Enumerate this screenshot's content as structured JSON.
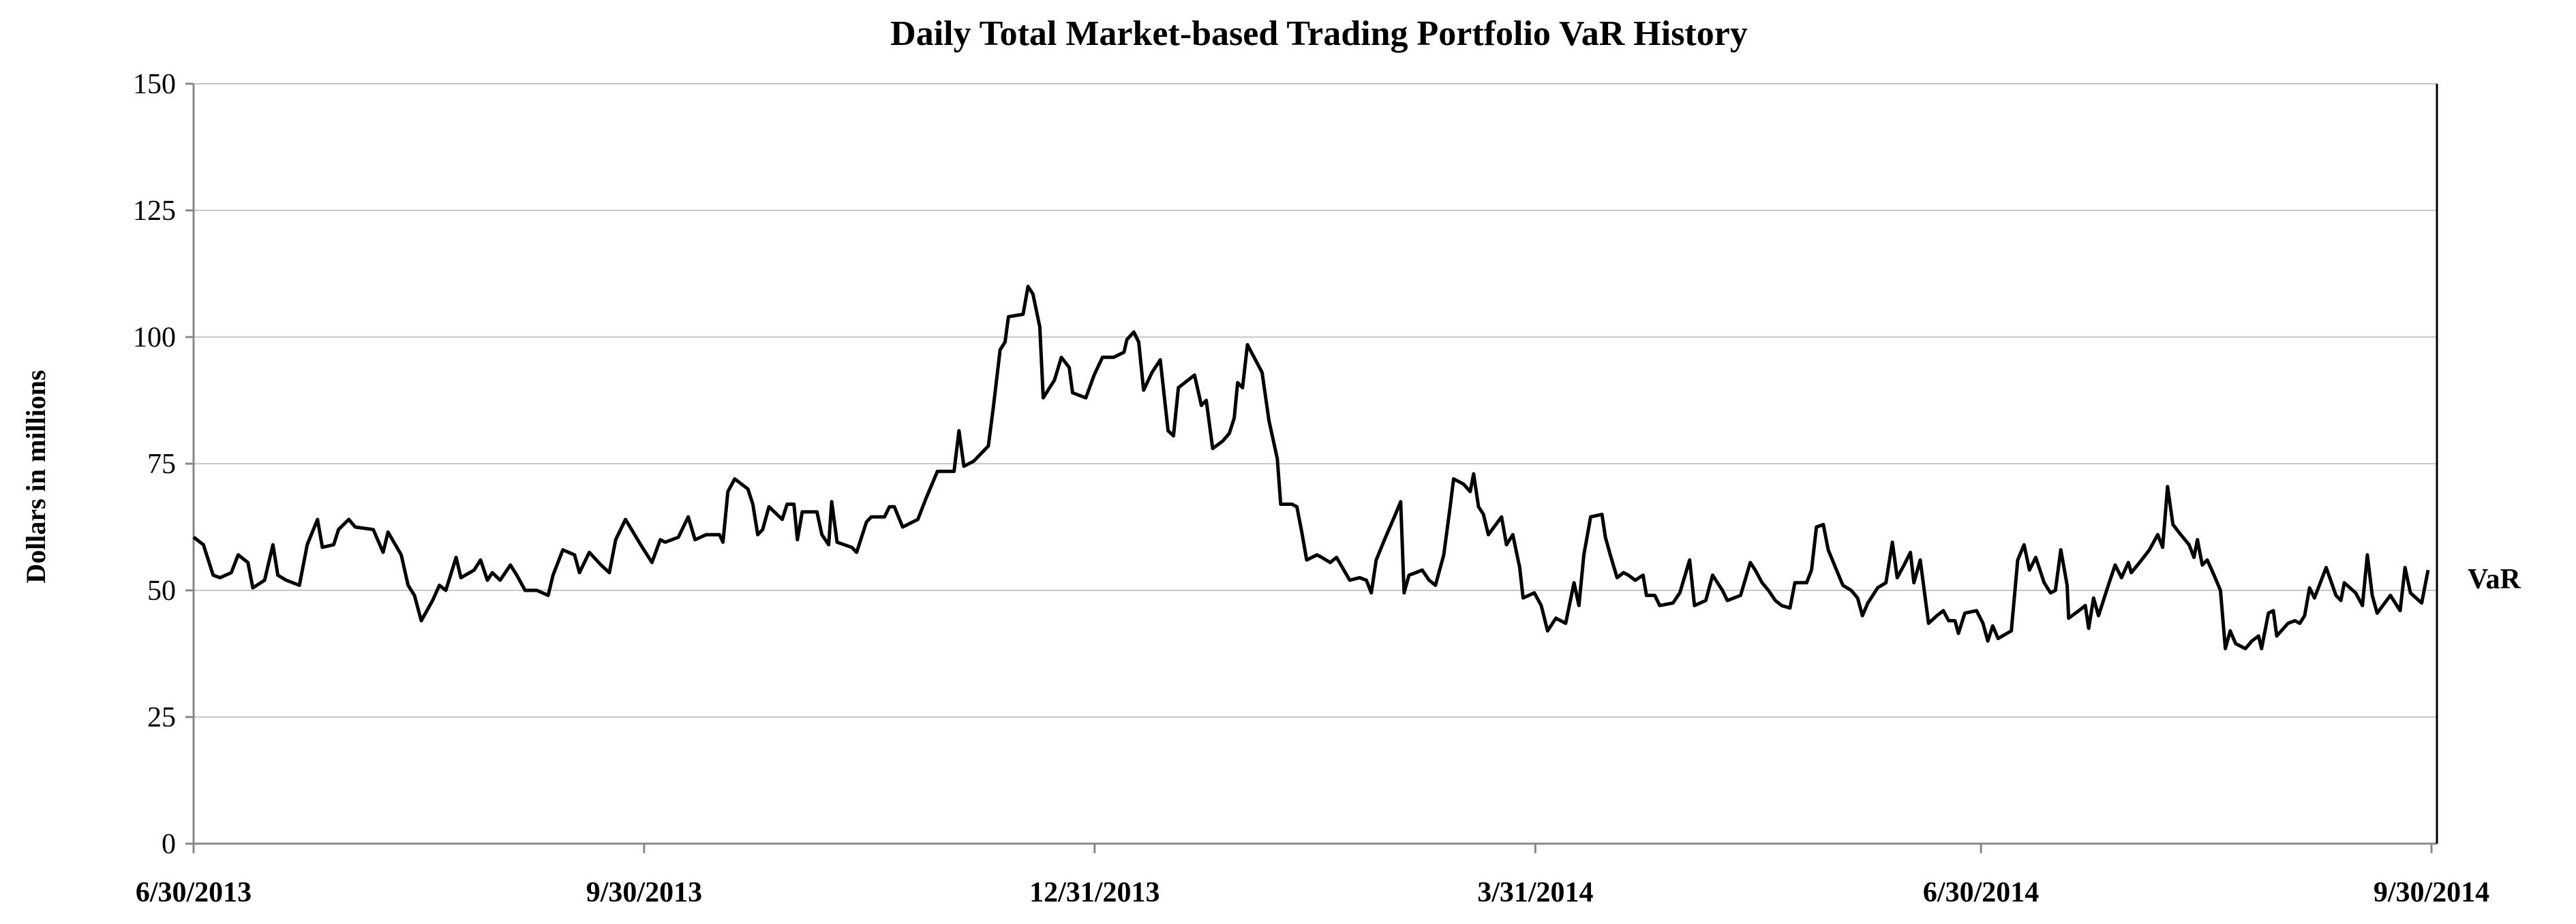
{
  "chart_data": {
    "type": "line",
    "title": "Daily Total Market-based Trading Portfolio VaR History",
    "xlabel": "",
    "ylabel": "Dollars in millions",
    "ylim": [
      0,
      150
    ],
    "yticks": [
      0,
      25,
      50,
      75,
      100,
      125,
      150
    ],
    "x_unit": "days since 6/30/2013",
    "xlim": [
      0,
      457
    ],
    "xticks": [
      {
        "day": 0,
        "label": "6/30/2013"
      },
      {
        "day": 92,
        "label": "9/30/2013"
      },
      {
        "day": 184,
        "label": "12/31/2013"
      },
      {
        "day": 274,
        "label": "3/31/2014"
      },
      {
        "day": 365,
        "label": "6/30/2014"
      },
      {
        "day": 457,
        "label": "9/30/2014"
      }
    ],
    "grid": true,
    "legend": "right",
    "series": [
      {
        "name": "VaR",
        "color": "#000000",
        "points": [
          [
            0,
            60.5
          ],
          [
            2,
            59
          ],
          [
            4,
            53
          ],
          [
            5.4,
            52.5
          ],
          [
            7.7,
            53.5
          ],
          [
            9.1,
            57
          ],
          [
            11.1,
            55.5
          ],
          [
            12.1,
            50.5
          ],
          [
            14.5,
            52
          ],
          [
            16.2,
            59
          ],
          [
            17.2,
            53
          ],
          [
            18.9,
            52
          ],
          [
            21.6,
            51
          ],
          [
            23.2,
            59
          ],
          [
            25.3,
            64
          ],
          [
            26.3,
            58.5
          ],
          [
            28.6,
            59
          ],
          [
            29.6,
            62
          ],
          [
            31.7,
            64
          ],
          [
            33,
            62.5
          ],
          [
            36.7,
            62
          ],
          [
            38.7,
            57.5
          ],
          [
            39.7,
            61.5
          ],
          [
            42.4,
            57
          ],
          [
            43.8,
            51
          ],
          [
            45.1,
            49
          ],
          [
            46.5,
            44
          ],
          [
            48.8,
            48
          ],
          [
            50.2,
            51
          ],
          [
            51.5,
            50
          ],
          [
            53.6,
            56.5
          ],
          [
            54.6,
            52.5
          ],
          [
            57.3,
            54
          ],
          [
            58.6,
            56
          ],
          [
            60,
            52
          ],
          [
            61,
            53.5
          ],
          [
            62.6,
            52
          ],
          [
            64.7,
            55
          ],
          [
            66,
            53
          ],
          [
            67.7,
            50
          ],
          [
            70.1,
            50
          ],
          [
            72.4,
            49
          ],
          [
            73.4,
            53
          ],
          [
            75.4,
            58
          ],
          [
            77.8,
            57
          ],
          [
            78.8,
            53.5
          ],
          [
            80.8,
            57.5
          ],
          [
            83.2,
            55
          ],
          [
            84.9,
            53.5
          ],
          [
            86.2,
            60
          ],
          [
            88.2,
            64
          ],
          [
            91.3,
            59
          ],
          [
            93.6,
            55.5
          ],
          [
            95.3,
            60
          ],
          [
            96.3,
            59.5
          ],
          [
            99,
            60.5
          ],
          [
            101,
            64.5
          ],
          [
            102.4,
            60
          ],
          [
            104.7,
            61
          ],
          [
            107.4,
            61
          ],
          [
            108.1,
            59.5
          ],
          [
            109.1,
            69.5
          ],
          [
            110.5,
            72
          ],
          [
            113.2,
            70
          ],
          [
            114.2,
            67
          ],
          [
            115.2,
            61
          ],
          [
            116.2,
            62
          ],
          [
            117.5,
            66.5
          ],
          [
            120.2,
            64
          ],
          [
            121.2,
            67
          ],
          [
            122.6,
            67
          ],
          [
            123.3,
            60
          ],
          [
            124.3,
            65.5
          ],
          [
            127.3,
            65.5
          ],
          [
            128.3,
            61
          ],
          [
            129.7,
            59
          ],
          [
            130.3,
            67.5
          ],
          [
            131.4,
            59.5
          ],
          [
            134.4,
            58.5
          ],
          [
            135.4,
            57.5
          ],
          [
            137.4,
            63.5
          ],
          [
            138.4,
            64.5
          ],
          [
            141.1,
            64.5
          ],
          [
            142.1,
            66.5
          ],
          [
            143.1,
            66.5
          ],
          [
            144.8,
            62.5
          ],
          [
            147.9,
            64
          ],
          [
            149.5,
            68
          ],
          [
            151.9,
            73.5
          ],
          [
            155.3,
            73.5
          ],
          [
            156.3,
            81.5
          ],
          [
            157.3,
            74.5
          ],
          [
            159.3,
            75.5
          ],
          [
            162.3,
            78.5
          ],
          [
            163.3,
            86
          ],
          [
            164.7,
            97.5
          ],
          [
            165.7,
            99
          ],
          [
            166.4,
            104
          ],
          [
            169.4,
            104.5
          ],
          [
            170.4,
            110
          ],
          [
            171.4,
            108.5
          ],
          [
            172.8,
            102
          ],
          [
            173.5,
            88
          ],
          [
            175.8,
            91.5
          ],
          [
            177.2,
            96
          ],
          [
            178.8,
            94
          ],
          [
            179.5,
            89
          ],
          [
            182.2,
            88
          ],
          [
            183.9,
            92.5
          ],
          [
            185.6,
            96
          ],
          [
            187.9,
            96
          ],
          [
            190,
            97
          ],
          [
            190.6,
            99.5
          ],
          [
            192,
            101
          ],
          [
            193,
            99
          ],
          [
            194,
            89.5
          ],
          [
            195.7,
            93
          ],
          [
            197.4,
            95.5
          ],
          [
            199,
            81.5
          ],
          [
            200.1,
            80.5
          ],
          [
            201.1,
            90
          ],
          [
            203.1,
            91.5
          ],
          [
            204.4,
            92.5
          ],
          [
            205.8,
            86.5
          ],
          [
            206.8,
            87.5
          ],
          [
            208.1,
            78
          ],
          [
            210.2,
            79.5
          ],
          [
            211.5,
            81
          ],
          [
            212.5,
            84
          ],
          [
            213.2,
            91
          ],
          [
            214.2,
            90
          ],
          [
            215.2,
            98.5
          ],
          [
            218.2,
            93
          ],
          [
            219.6,
            83.5
          ],
          [
            221.3,
            76
          ],
          [
            222,
            67
          ],
          [
            224.3,
            67
          ],
          [
            225.3,
            66.5
          ],
          [
            226.3,
            61.5
          ],
          [
            227.3,
            56
          ],
          [
            229.4,
            57
          ],
          [
            230.4,
            56.5
          ],
          [
            232.1,
            55.5
          ],
          [
            233.4,
            56.5
          ],
          [
            236.1,
            52
          ],
          [
            238.1,
            52.5
          ],
          [
            239.5,
            52
          ],
          [
            240.5,
            49.5
          ],
          [
            241.5,
            56
          ],
          [
            243.2,
            60
          ],
          [
            245.2,
            64.5
          ],
          [
            246.5,
            67.5
          ],
          [
            247.2,
            49.5
          ],
          [
            248.2,
            53
          ],
          [
            249.6,
            53.5
          ],
          [
            250.9,
            54
          ],
          [
            252.3,
            52
          ],
          [
            253.6,
            51
          ],
          [
            255.3,
            57
          ],
          [
            256.6,
            66.5
          ],
          [
            257.3,
            72
          ],
          [
            259.3,
            71
          ],
          [
            260.7,
            69.5
          ],
          [
            261.4,
            73
          ],
          [
            262.4,
            66.5
          ],
          [
            263.4,
            65
          ],
          [
            264.4,
            61
          ],
          [
            267.1,
            64.5
          ],
          [
            268.1,
            59
          ],
          [
            269.4,
            61
          ],
          [
            270.8,
            54.5
          ],
          [
            271.5,
            48.5
          ],
          [
            273.8,
            49.5
          ],
          [
            275.2,
            47
          ],
          [
            276.5,
            42
          ],
          [
            278.2,
            44.5
          ],
          [
            280.2,
            43.5
          ],
          [
            281.9,
            51.5
          ],
          [
            282.9,
            47
          ],
          [
            283.9,
            57
          ],
          [
            285.3,
            64.5
          ],
          [
            287.6,
            65
          ],
          [
            288.3,
            60.5
          ],
          [
            289.3,
            57
          ],
          [
            290.7,
            52.5
          ],
          [
            292,
            53.5
          ],
          [
            293,
            53
          ],
          [
            294.4,
            52
          ],
          [
            296,
            53
          ],
          [
            296.7,
            49
          ],
          [
            298.4,
            49
          ],
          [
            299.4,
            47
          ],
          [
            302.1,
            47.5
          ],
          [
            303.5,
            49.5
          ],
          [
            305.5,
            56
          ],
          [
            306.5,
            47
          ],
          [
            308.8,
            48
          ],
          [
            310.2,
            53
          ],
          [
            312.2,
            50
          ],
          [
            313.2,
            48
          ],
          [
            315.9,
            49
          ],
          [
            317.9,
            55.5
          ],
          [
            318.9,
            54
          ],
          [
            320.3,
            51.5
          ],
          [
            321.6,
            50
          ],
          [
            323,
            48
          ],
          [
            324.3,
            47
          ],
          [
            326,
            46.5
          ],
          [
            327,
            51.5
          ],
          [
            329.4,
            51.5
          ],
          [
            330.4,
            54
          ],
          [
            331.4,
            62.5
          ],
          [
            332.8,
            63
          ],
          [
            333.8,
            58
          ],
          [
            335.5,
            54
          ],
          [
            336.8,
            51
          ],
          [
            338.5,
            50
          ],
          [
            339.8,
            48.5
          ],
          [
            340.8,
            45
          ],
          [
            341.9,
            47.5
          ],
          [
            343.9,
            50.5
          ],
          [
            345.6,
            51.5
          ],
          [
            346.9,
            59.5
          ],
          [
            347.9,
            52.5
          ],
          [
            349.3,
            55
          ],
          [
            350.6,
            57.5
          ],
          [
            351.3,
            51.5
          ],
          [
            352.6,
            56
          ],
          [
            354.3,
            43.5
          ],
          [
            356,
            45
          ],
          [
            357.3,
            46
          ],
          [
            358.4,
            44
          ],
          [
            359.7,
            44
          ],
          [
            360.4,
            41.5
          ],
          [
            361.7,
            45.5
          ],
          [
            364.1,
            46
          ],
          [
            365.4,
            43.5
          ],
          [
            366.4,
            40
          ],
          [
            367.4,
            43
          ],
          [
            368.5,
            40.5
          ],
          [
            371.2,
            42
          ],
          [
            372.5,
            56
          ],
          [
            373.8,
            59
          ],
          [
            374.9,
            54
          ],
          [
            376.2,
            56.5
          ],
          [
            377.9,
            51.5
          ],
          [
            379.2,
            49.5
          ],
          [
            380.2,
            50
          ],
          [
            381.3,
            58
          ],
          [
            382.6,
            51
          ],
          [
            382.9,
            44.5
          ],
          [
            385,
            46
          ],
          [
            386.3,
            47
          ],
          [
            387,
            42.5
          ],
          [
            388,
            48.5
          ],
          [
            389,
            45
          ],
          [
            391,
            51
          ],
          [
            392.4,
            55
          ],
          [
            393.7,
            52.5
          ],
          [
            395.1,
            55.5
          ],
          [
            395.7,
            53.5
          ],
          [
            397.8,
            56
          ],
          [
            399.4,
            58
          ],
          [
            401.1,
            61
          ],
          [
            402.1,
            58.5
          ],
          [
            403.1,
            70.5
          ],
          [
            404.2,
            63
          ],
          [
            405.8,
            61
          ],
          [
            407.5,
            59
          ],
          [
            408.5,
            56.5
          ],
          [
            409.2,
            60
          ],
          [
            410.2,
            55
          ],
          [
            411.2,
            56
          ],
          [
            412.6,
            53
          ],
          [
            413.9,
            50
          ],
          [
            414.9,
            38.5
          ],
          [
            415.9,
            42
          ],
          [
            417,
            39.5
          ],
          [
            419,
            38.5
          ],
          [
            420.3,
            40
          ],
          [
            421.7,
            41
          ],
          [
            422.3,
            38.5
          ],
          [
            423.7,
            45.5
          ],
          [
            424.7,
            46
          ],
          [
            425.4,
            41
          ],
          [
            427.7,
            43.5
          ],
          [
            429.1,
            44
          ],
          [
            430.1,
            43.5
          ],
          [
            431.1,
            45
          ],
          [
            432.1,
            50.5
          ],
          [
            433.1,
            48.5
          ],
          [
            435.5,
            54.5
          ],
          [
            437.5,
            49
          ],
          [
            438.5,
            48
          ],
          [
            439.2,
            51.5
          ],
          [
            441.5,
            49.5
          ],
          [
            442.9,
            47
          ],
          [
            443.9,
            57
          ],
          [
            444.9,
            49
          ],
          [
            445.9,
            45.5
          ],
          [
            448.6,
            49
          ],
          [
            450.6,
            46
          ],
          [
            451.6,
            54.5
          ],
          [
            452.7,
            49.5
          ],
          [
            455,
            47.5
          ],
          [
            456.3,
            54
          ]
        ]
      }
    ]
  }
}
